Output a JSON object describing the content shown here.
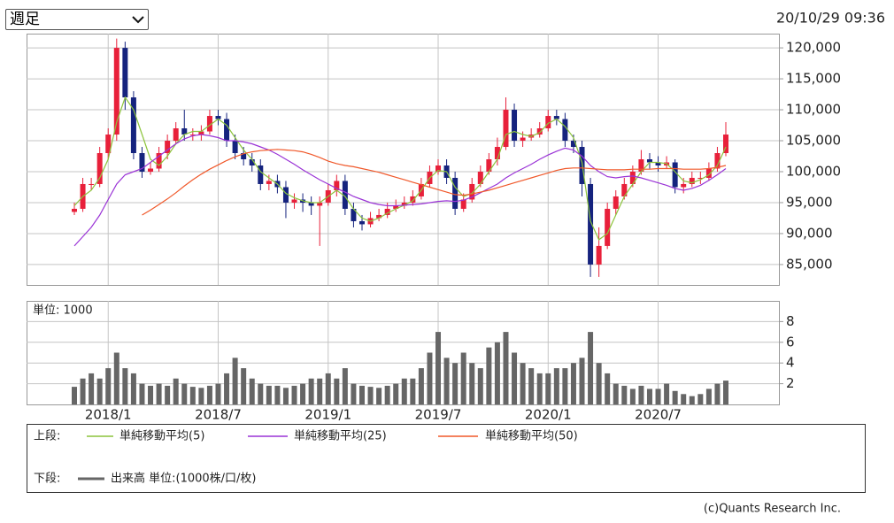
{
  "controls": {
    "period_select": "週足",
    "timestamp": "20/10/29 09:36"
  },
  "chart_data": [
    {
      "type": "candlestick",
      "categories": [
        null,
        null,
        null,
        null,
        "2018/1",
        null,
        null,
        null,
        null,
        null,
        null,
        null,
        null,
        null,
        null,
        null,
        null,
        "2018/7",
        null,
        null,
        null,
        null,
        null,
        null,
        null,
        null,
        null,
        null,
        null,
        null,
        "2019/1",
        null,
        null,
        null,
        null,
        null,
        null,
        null,
        null,
        null,
        null,
        null,
        null,
        "2019/7",
        null,
        null,
        null,
        null,
        null,
        null,
        null,
        null,
        null,
        null,
        null,
        null,
        "2020/1",
        null,
        null,
        null,
        null,
        null,
        null,
        null,
        null,
        null,
        null,
        null,
        null,
        "2020/7",
        null,
        null,
        null,
        null,
        null,
        null,
        null,
        null
      ],
      "open": [
        93500,
        94000,
        98000,
        98000,
        103000,
        106000,
        120000,
        112000,
        103000,
        100000,
        100500,
        103000,
        105000,
        107000,
        106000,
        106000,
        106500,
        109000,
        108500,
        105000,
        103000,
        102000,
        101000,
        98000,
        98500,
        97500,
        95000,
        95500,
        95000,
        94500,
        95000,
        97000,
        98500,
        94000,
        92000,
        91500,
        92500,
        93000,
        94000,
        94500,
        95000,
        96000,
        98000,
        100000,
        101000,
        99000,
        94000,
        95500,
        98000,
        100000,
        102000,
        104000,
        110000,
        105000,
        105500,
        106000,
        107000,
        109000,
        108500,
        105000,
        104000,
        98000,
        85000,
        88000,
        94000,
        96000,
        98000,
        100000,
        102000,
        101500,
        101000,
        101500,
        97500,
        98000,
        99000,
        99000,
        100500,
        103000
      ],
      "high": [
        95000,
        99000,
        99000,
        104000,
        107000,
        121500,
        121000,
        113000,
        104000,
        101500,
        104000,
        106000,
        108000,
        110000,
        107000,
        107500,
        110000,
        110000,
        109500,
        106000,
        104000,
        103000,
        102000,
        99500,
        99500,
        98500,
        96500,
        96500,
        96000,
        96000,
        98000,
        99500,
        99500,
        95000,
        93000,
        93500,
        94000,
        95000,
        95500,
        96000,
        97000,
        99000,
        101000,
        102000,
        102000,
        100000,
        96500,
        99000,
        101000,
        103000,
        105500,
        112000,
        111000,
        106500,
        107000,
        108000,
        110000,
        110000,
        109500,
        106000,
        105000,
        99000,
        91000,
        95000,
        97000,
        99000,
        101000,
        103500,
        103000,
        102500,
        102500,
        102000,
        99000,
        100000,
        100000,
        101500,
        104000,
        108000
      ],
      "low": [
        93000,
        93500,
        97000,
        97500,
        102000,
        105000,
        110000,
        102000,
        99000,
        99500,
        100000,
        102000,
        104500,
        105000,
        105000,
        105000,
        106000,
        107500,
        104000,
        102000,
        101000,
        100000,
        97000,
        97000,
        96500,
        92500,
        94000,
        93500,
        93000,
        88000,
        94500,
        96000,
        93000,
        91000,
        90500,
        91000,
        92000,
        92500,
        93500,
        94000,
        94500,
        95500,
        97500,
        99500,
        98000,
        93000,
        93500,
        95000,
        97500,
        99500,
        101000,
        103500,
        104000,
        104000,
        105000,
        105500,
        106500,
        107500,
        104000,
        103000,
        96000,
        83000,
        83000,
        87500,
        93000,
        95500,
        97500,
        99500,
        100500,
        100000,
        100500,
        96500,
        96500,
        97500,
        98000,
        98500,
        100000,
        102500
      ],
      "close": [
        94000,
        98000,
        98000,
        103000,
        106000,
        120000,
        112000,
        103000,
        100000,
        100500,
        103000,
        105000,
        107000,
        106000,
        106000,
        106500,
        109000,
        108500,
        105000,
        103000,
        102000,
        101000,
        98000,
        98500,
        97500,
        95000,
        95500,
        95000,
        94500,
        95000,
        97000,
        98500,
        94000,
        92000,
        91500,
        92500,
        93000,
        94000,
        94500,
        95000,
        96000,
        98000,
        100000,
        101000,
        99000,
        94000,
        95500,
        98000,
        100000,
        102000,
        104000,
        110000,
        105000,
        105500,
        106000,
        107000,
        109000,
        108500,
        105000,
        104000,
        98000,
        85000,
        88000,
        94000,
        96000,
        98000,
        100000,
        102000,
        101500,
        101000,
        101500,
        97500,
        98000,
        99000,
        99000,
        100500,
        103000,
        106000
      ],
      "up_color": "#e8203a",
      "down_color": "#15237e",
      "series": [
        {
          "name": "単純移動平均(5)",
          "color": "#8cc43c",
          "values": [
            94500,
            96000,
            97000,
            99000,
            102000,
            108000,
            112000,
            110000,
            106000,
            102000,
            101000,
            102500,
            104500,
            106000,
            106500,
            106500,
            107500,
            108500,
            107500,
            105500,
            103500,
            102000,
            100000,
            99000,
            98000,
            96500,
            95800,
            95300,
            95000,
            95000,
            96000,
            97000,
            96000,
            94000,
            92500,
            92000,
            92500,
            93300,
            94000,
            94600,
            95300,
            97000,
            99000,
            100200,
            100000,
            97500,
            96000,
            96500,
            98000,
            100000,
            102000,
            106000,
            106500,
            106000,
            105700,
            106300,
            107800,
            108500,
            107300,
            105500,
            101500,
            92000,
            89000,
            90000,
            93000,
            96000,
            98000,
            100000,
            101500,
            101500,
            101300,
            100000,
            98500,
            98200,
            98700,
            99500,
            101000,
            104000
          ]
        },
        {
          "name": "単純移動平均(25)",
          "color": "#9a33d6",
          "values": [
            88000,
            89500,
            91000,
            93000,
            95500,
            98000,
            99500,
            100000,
            100500,
            101500,
            102500,
            103500,
            104500,
            105300,
            105800,
            106000,
            105800,
            105500,
            105000,
            105000,
            104800,
            104500,
            104000,
            103500,
            102800,
            102000,
            101200,
            100300,
            99500,
            98700,
            98000,
            97300,
            96700,
            96000,
            95500,
            95000,
            94700,
            94500,
            94500,
            94600,
            94700,
            94800,
            95000,
            95200,
            95300,
            95200,
            95400,
            95900,
            96600,
            97300,
            98000,
            99000,
            99800,
            100500,
            101200,
            102000,
            102700,
            103300,
            103800,
            103500,
            102500,
            101000,
            100000,
            99200,
            99000,
            99200,
            99300,
            99000,
            98600,
            98200,
            97800,
            97300,
            97000,
            97300,
            97800,
            98600,
            99500,
            100500
          ]
        },
        {
          "name": "単純移動平均(50)",
          "color": "#f0582a",
          "values": [
            null,
            null,
            null,
            null,
            null,
            null,
            null,
            null,
            93000,
            93800,
            94700,
            95600,
            96600,
            97700,
            98700,
            99600,
            100400,
            101100,
            101800,
            102400,
            102900,
            103200,
            103400,
            103500,
            103600,
            103500,
            103400,
            103200,
            102800,
            102300,
            101700,
            101300,
            101000,
            100800,
            100500,
            100200,
            99900,
            99500,
            99100,
            98700,
            98300,
            97900,
            97500,
            97100,
            96700,
            96300,
            96200,
            96400,
            96700,
            97000,
            97400,
            97800,
            98200,
            98600,
            99000,
            99400,
            99800,
            100200,
            100500,
            100600,
            100600,
            100500,
            100400,
            100300,
            100300,
            100300,
            100400,
            100400,
            100400,
            100500,
            100500,
            100500,
            100400,
            100400,
            100400,
            100500,
            100700,
            101000
          ]
        }
      ],
      "ylim": [
        81700,
        122300
      ],
      "yticks": [
        {
          "value": 85000,
          "label": "85,000"
        },
        {
          "value": 90000,
          "label": "90,000"
        },
        {
          "value": 95000,
          "label": "95,000"
        },
        {
          "value": 100000,
          "label": "100,000"
        },
        {
          "value": 105000,
          "label": "105,000"
        },
        {
          "value": 110000,
          "label": "110,000"
        },
        {
          "value": 115000,
          "label": "115,000"
        },
        {
          "value": 120000,
          "label": "120,000"
        }
      ],
      "grid": true
    },
    {
      "type": "bar",
      "unit_label": "単位: 1000",
      "series": [
        {
          "name": "出来高 単位:(1000株/口/枚)",
          "color": "#666666",
          "values": [
            1.7,
            2.5,
            3.0,
            2.5,
            3.5,
            5.0,
            3.5,
            3.0,
            2.0,
            1.8,
            2.0,
            1.8,
            2.5,
            2.0,
            1.7,
            1.6,
            1.8,
            2.0,
            3.0,
            4.5,
            3.5,
            2.5,
            2.0,
            1.8,
            1.8,
            1.6,
            1.8,
            2.0,
            2.5,
            2.5,
            3.0,
            2.5,
            3.5,
            2.0,
            1.8,
            1.7,
            1.6,
            1.8,
            2.0,
            2.5,
            2.5,
            3.5,
            5.0,
            7.0,
            4.5,
            4.0,
            5.0,
            4.0,
            3.5,
            5.5,
            6.0,
            7.0,
            5.0,
            4.0,
            3.5,
            3.0,
            3.0,
            3.5,
            3.5,
            4.0,
            4.5,
            7.0,
            4.0,
            3.0,
            2.0,
            1.8,
            1.5,
            1.8,
            1.5,
            1.5,
            2.0,
            1.3,
            1.0,
            0.8,
            1.0,
            1.5,
            2.0,
            2.3
          ]
        }
      ],
      "ylim": [
        0,
        10
      ],
      "yticks": [
        2,
        4,
        6,
        8
      ],
      "grid": true
    }
  ],
  "legend": {
    "upper_label": "上段:",
    "lower_label": "下段:"
  },
  "footer": "(c)Quants Research Inc."
}
